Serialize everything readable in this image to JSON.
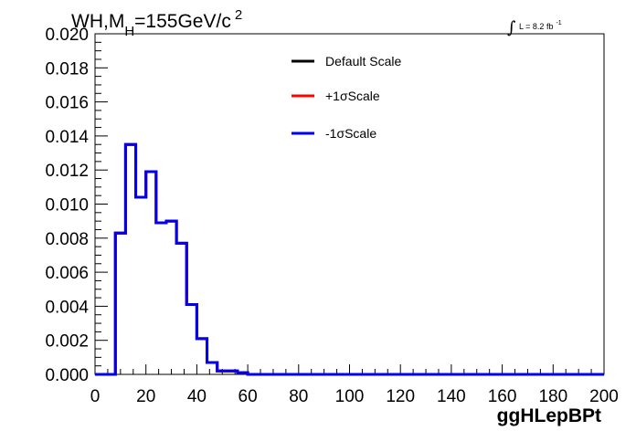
{
  "title": {
    "prefix": "WH,M",
    "subscript": "H",
    "value": "=155GeV/c",
    "superscript": "2"
  },
  "luminosity": {
    "integral_symbol": "∫",
    "text": "L = 8.2 fb",
    "superscript": "-1"
  },
  "chart_data": {
    "type": "line",
    "style": "step-histogram",
    "xlabel": "ggHLepBPt",
    "ylabel": "",
    "xlim": [
      0,
      200
    ],
    "ylim": [
      0,
      0.02
    ],
    "x_ticks": [
      "0",
      "20",
      "40",
      "60",
      "80",
      "100",
      "120",
      "140",
      "160",
      "180",
      "200"
    ],
    "y_ticks": [
      "0.000",
      "0.002",
      "0.004",
      "0.006",
      "0.008",
      "0.010",
      "0.012",
      "0.014",
      "0.016",
      "0.018",
      "0.020"
    ],
    "bin_width": 4,
    "bin_edges_start": 0,
    "grid": false,
    "legend_position": "top-center",
    "series": [
      {
        "name": "Default Scale",
        "color": "#000000",
        "values": [
          0,
          0,
          0.0083,
          0.0135,
          0.0104,
          0.0119,
          0.0089,
          0.009,
          0.0077,
          0.0041,
          0.0021,
          0.0007,
          0.0002,
          0.0002,
          0.0001,
          0,
          0,
          0,
          0,
          0,
          0,
          0,
          0,
          0,
          0,
          0,
          0,
          0,
          0,
          0,
          0,
          0,
          0,
          0,
          0,
          0,
          0,
          0,
          0,
          0,
          0,
          0,
          0,
          0,
          0,
          0,
          0,
          0,
          0,
          0
        ]
      },
      {
        "name": "+1σScale",
        "color": "#ff0000",
        "values": [
          0,
          0,
          0.0083,
          0.0135,
          0.0104,
          0.0119,
          0.0089,
          0.009,
          0.0077,
          0.0041,
          0.0021,
          0.0007,
          0.0002,
          0.0002,
          0.0001,
          0,
          0,
          0,
          0,
          0,
          0,
          0,
          0,
          0,
          0,
          0,
          0,
          0,
          0,
          0,
          0,
          0,
          0,
          0,
          0,
          0,
          0,
          0,
          0,
          0,
          0,
          0,
          0,
          0,
          0,
          0,
          0,
          0,
          0,
          0
        ]
      },
      {
        "name": "-1σScale",
        "color": "#0000ee",
        "values": [
          0,
          0,
          0.0083,
          0.0135,
          0.0104,
          0.0119,
          0.0089,
          0.009,
          0.0077,
          0.0041,
          0.0021,
          0.0007,
          0.0002,
          0.0002,
          0.0001,
          0,
          0,
          0,
          0,
          0,
          0,
          0,
          0,
          0,
          0,
          0,
          0,
          0,
          0,
          0,
          0,
          0,
          0,
          0,
          0,
          0,
          0,
          0,
          0,
          0,
          0,
          0,
          0,
          0,
          0,
          0,
          0,
          0,
          0,
          0
        ]
      }
    ]
  }
}
